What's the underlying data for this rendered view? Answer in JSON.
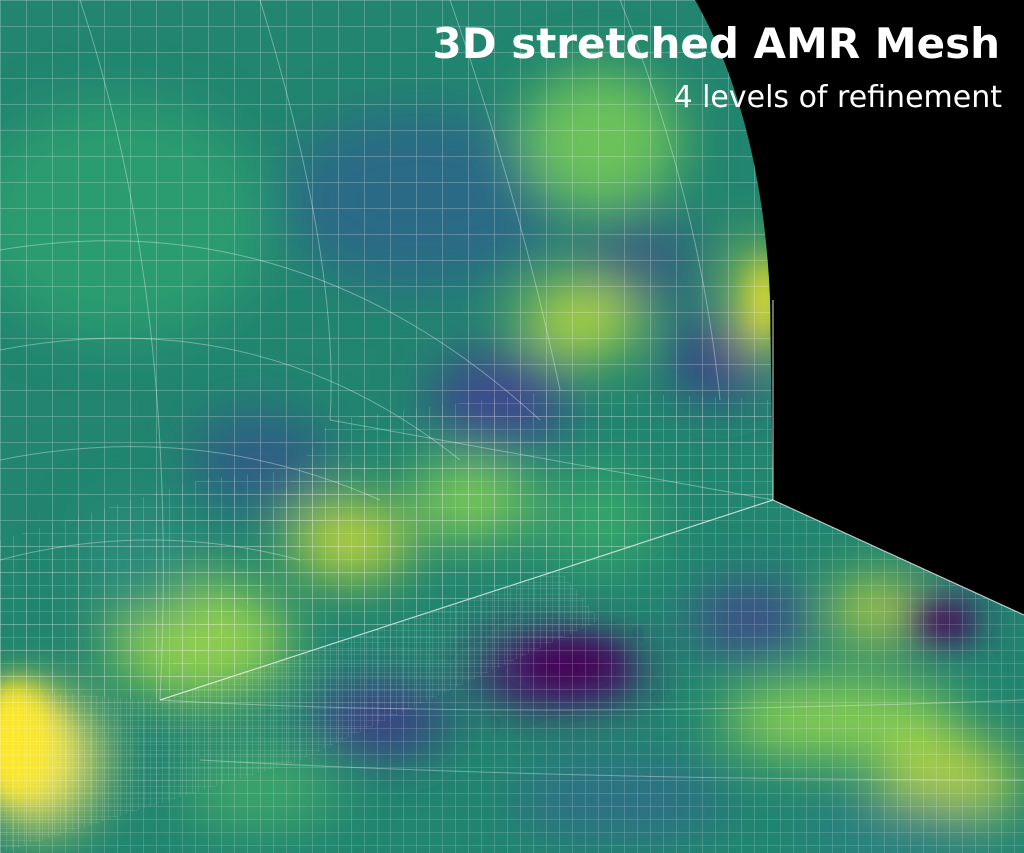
{
  "overlay": {
    "title": "3D stretched AMR Mesh",
    "subtitle": "4 levels of refinement"
  },
  "render": {
    "background_color": "#000000",
    "grid_line_color": "#ffffff",
    "colormap_name": "viridis",
    "colormap": [
      "#440154",
      "#3b528b",
      "#21918c",
      "#5ec962",
      "#c8d63a",
      "#fde725"
    ]
  }
}
